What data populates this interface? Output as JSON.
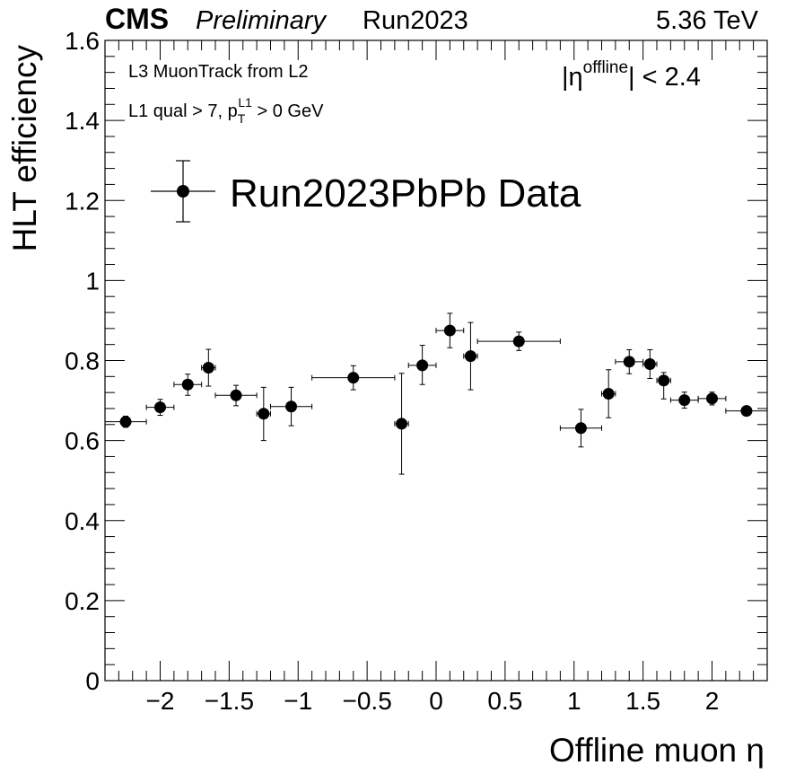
{
  "header": {
    "cms": "CMS",
    "preliminary": "Preliminary",
    "run": "Run2023",
    "energy": "5.36 TeV"
  },
  "annotations": {
    "line1": "L3 MuonTrack from L2",
    "line2_prefix": "L1 qual > 7, p",
    "line2_sub": "T",
    "line2_sup": "L1",
    "line2_suffix": " > 0 GeV",
    "eta_prefix": "|η",
    "eta_sup": "offline",
    "eta_suffix": "| < 2.4"
  },
  "chart_data": {
    "type": "scatter",
    "xlabel": "Offline muon  η",
    "ylabel": "HLT efficiency",
    "xlim": [
      -2.4,
      2.4
    ],
    "ylim": [
      0,
      1.6
    ],
    "xticks": [
      -2,
      -1.5,
      -1,
      -0.5,
      0,
      0.5,
      1,
      1.5,
      2
    ],
    "xtick_labels": [
      "−2",
      "−1.5",
      "−1",
      "−0.5",
      "0",
      "0.5",
      "1",
      "1.5",
      "2"
    ],
    "yticks": [
      0,
      0.2,
      0.4,
      0.6,
      0.8,
      1,
      1.2,
      1.4,
      1.6
    ],
    "ytick_labels": [
      "0",
      "0.2",
      "0.4",
      "0.6",
      "0.8",
      "1",
      "1.2",
      "1.4",
      "1.6"
    ],
    "grid": false,
    "legend_position": "top-left",
    "series": [
      {
        "name": "Run2023PbPb Data",
        "color": "#000000",
        "points": [
          {
            "x": -2.25,
            "xlo": -2.4,
            "xhi": -2.1,
            "y": 0.647,
            "ylo": 0.633,
            "yhi": 0.661
          },
          {
            "x": -2.0,
            "xlo": -2.1,
            "xhi": -1.9,
            "y": 0.683,
            "ylo": 0.663,
            "yhi": 0.703
          },
          {
            "x": -1.8,
            "xlo": -1.9,
            "xhi": -1.7,
            "y": 0.74,
            "ylo": 0.713,
            "yhi": 0.766
          },
          {
            "x": -1.65,
            "xlo": -1.7,
            "xhi": -1.6,
            "y": 0.782,
            "ylo": 0.736,
            "yhi": 0.828
          },
          {
            "x": -1.45,
            "xlo": -1.6,
            "xhi": -1.3,
            "y": 0.713,
            "ylo": 0.687,
            "yhi": 0.738
          },
          {
            "x": -1.25,
            "xlo": -1.3,
            "xhi": -1.2,
            "y": 0.667,
            "ylo": 0.6,
            "yhi": 0.733
          },
          {
            "x": -1.05,
            "xlo": -1.2,
            "xhi": -0.9,
            "y": 0.685,
            "ylo": 0.637,
            "yhi": 0.733
          },
          {
            "x": -0.6,
            "xlo": -0.9,
            "xhi": -0.3,
            "y": 0.757,
            "ylo": 0.727,
            "yhi": 0.787
          },
          {
            "x": -0.25,
            "xlo": -0.3,
            "xhi": -0.2,
            "y": 0.642,
            "ylo": 0.516,
            "yhi": 0.768
          },
          {
            "x": -0.1,
            "xlo": -0.2,
            "xhi": 0.0,
            "y": 0.788,
            "ylo": 0.74,
            "yhi": 0.838
          },
          {
            "x": 0.1,
            "xlo": 0.0,
            "xhi": 0.2,
            "y": 0.875,
            "ylo": 0.832,
            "yhi": 0.918
          },
          {
            "x": 0.25,
            "xlo": 0.2,
            "xhi": 0.3,
            "y": 0.811,
            "ylo": 0.727,
            "yhi": 0.895
          },
          {
            "x": 0.6,
            "xlo": 0.3,
            "xhi": 0.9,
            "y": 0.848,
            "ylo": 0.825,
            "yhi": 0.871
          },
          {
            "x": 1.05,
            "xlo": 0.9,
            "xhi": 1.2,
            "y": 0.631,
            "ylo": 0.584,
            "yhi": 0.678
          },
          {
            "x": 1.25,
            "xlo": 1.2,
            "xhi": 1.3,
            "y": 0.717,
            "ylo": 0.657,
            "yhi": 0.777
          },
          {
            "x": 1.4,
            "xlo": 1.3,
            "xhi": 1.5,
            "y": 0.797,
            "ylo": 0.767,
            "yhi": 0.827
          },
          {
            "x": 1.55,
            "xlo": 1.5,
            "xhi": 1.6,
            "y": 0.791,
            "ylo": 0.755,
            "yhi": 0.827
          },
          {
            "x": 1.65,
            "xlo": 1.6,
            "xhi": 1.7,
            "y": 0.75,
            "ylo": 0.704,
            "yhi": 0.77
          },
          {
            "x": 1.8,
            "xlo": 1.7,
            "xhi": 1.9,
            "y": 0.701,
            "ylo": 0.681,
            "yhi": 0.721
          },
          {
            "x": 2.0,
            "xlo": 1.9,
            "xhi": 2.1,
            "y": 0.705,
            "ylo": 0.689,
            "yhi": 0.721
          },
          {
            "x": 2.25,
            "xlo": 2.1,
            "xhi": 2.4,
            "y": 0.674,
            "ylo": 0.662,
            "yhi": 0.686
          }
        ]
      }
    ]
  }
}
